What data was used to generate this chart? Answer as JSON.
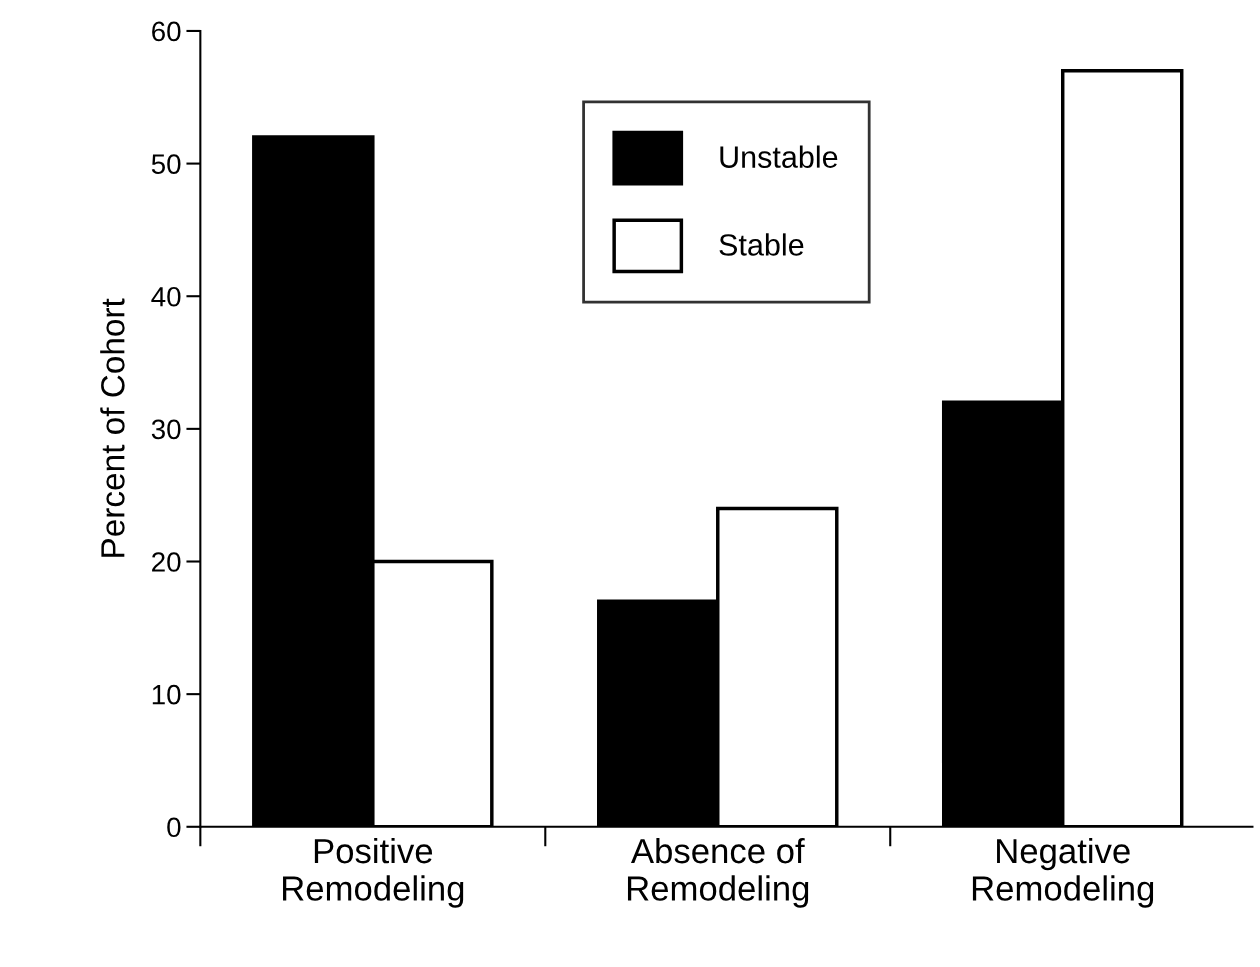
{
  "chart_data": {
    "type": "bar",
    "ylabel": "Percent of Cohort",
    "categories": [
      "Positive\nRemodeling",
      "Absence of\nRemodeling",
      "Negative\nRemodeling"
    ],
    "series": [
      {
        "name": "Unstable",
        "color": "#000000",
        "values": [
          52,
          17,
          32
        ]
      },
      {
        "name": "Stable",
        "color": "#ffffff",
        "values": [
          20,
          24,
          57
        ]
      }
    ],
    "ylim": [
      0,
      60
    ],
    "yticks": [
      0,
      10,
      20,
      30,
      40,
      50,
      60
    ],
    "grid": false,
    "legend": "top"
  }
}
